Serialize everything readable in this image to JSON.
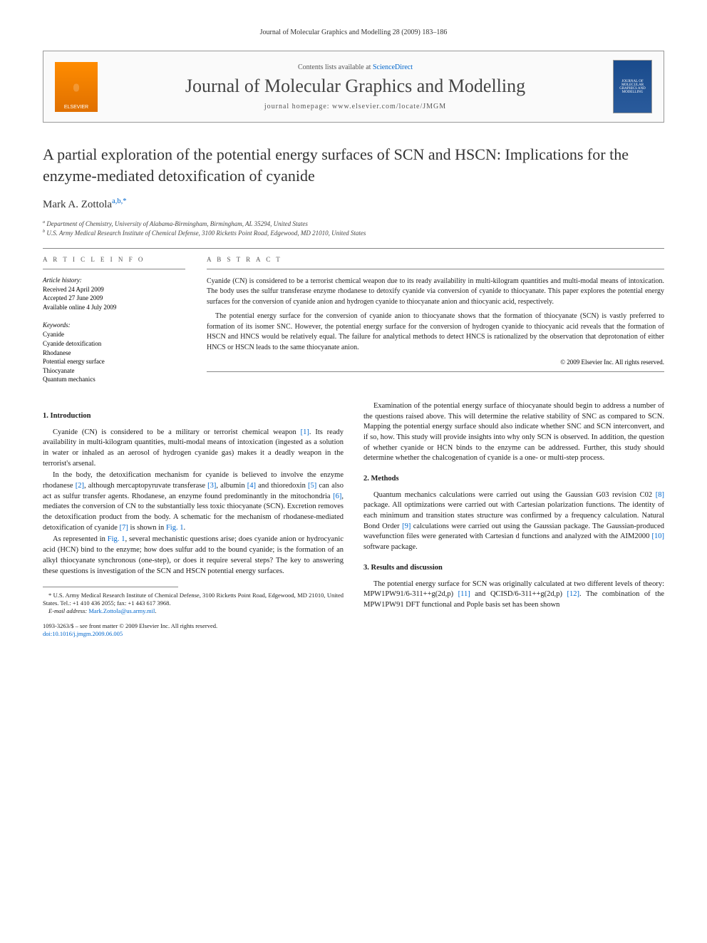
{
  "runningHead": "Journal of Molecular Graphics and Modelling 28 (2009) 183–186",
  "header": {
    "contentsPrefix": "Contents lists available at ",
    "contentsLink": "ScienceDirect",
    "journalName": "Journal of Molecular Graphics and Modelling",
    "homepagePrefix": "journal homepage: ",
    "homepage": "www.elsevier.com/locate/JMGM",
    "elsevierLabel": "ELSEVIER",
    "coverCaption": "JOURNAL OF MOLECULAR GRAPHICS AND MODELLING"
  },
  "title": "A partial exploration of the potential energy surfaces of SCN and HSCN: Implications for the enzyme-mediated detoxification of cyanide",
  "author": "Mark A. Zottola",
  "authorSup": "a,b,*",
  "affiliations": {
    "a": "Department of Chemistry, University of Alabama-Birmingham, Birmingham, AL 35294, United States",
    "b": "U.S. Army Medical Research Institute of Chemical Defense, 3100 Ricketts Point Road, Edgewood, MD 21010, United States"
  },
  "articleInfoLabel": "A R T I C L E   I N F O",
  "abstractLabel": "A B S T R A C T",
  "history": {
    "head": "Article history:",
    "received": "Received 24 April 2009",
    "accepted": "Accepted 27 June 2009",
    "online": "Available online 4 July 2009"
  },
  "keywords": {
    "head": "Keywords:",
    "items": [
      "Cyanide",
      "Cyanide detoxification",
      "Rhodanese",
      "Potential energy surface",
      "Thiocyanate",
      "Quantum mechanics"
    ]
  },
  "abstract": {
    "p1": "Cyanide (CN) is considered to be a terrorist chemical weapon due to its ready availability in multi-kilogram quantities and multi-modal means of intoxication. The body uses the sulfur transferase enzyme rhodanese to detoxify cyanide via conversion of cyanide to thiocyanate. This paper explores the potential energy surfaces for the conversion of cyanide anion and hydrogen cyanide to thiocyanate anion and thiocyanic acid, respectively.",
    "p2": "The potential energy surface for the conversion of cyanide anion to thiocyanate shows that the formation of thiocyanate (SCN) is vastly preferred to formation of its isomer SNC. However, the potential energy surface for the conversion of hydrogen cyanide to thiocyanic acid reveals that the formation of HSCN and HNCS would be relatively equal. The failure for analytical methods to detect HNCS is rationalized by the observation that deprotonation of either HNCS or HSCN leads to the same thiocyanate anion.",
    "copyright": "© 2009 Elsevier Inc. All rights reserved."
  },
  "sections": {
    "s1": {
      "head": "1. Introduction",
      "p1a": "Cyanide (CN) is considered to be a military or terrorist chemical weapon ",
      "p1b": ". Its ready availability in multi-kilogram quantities, multi-modal means of intoxication (ingested as a solution in water or inhaled as an aerosol of hydrogen cyanide gas) makes it a deadly weapon in the terrorist's arsenal.",
      "p2a": "In the body, the detoxification mechanism for cyanide is believed to involve the enzyme rhodanese ",
      "p2b": ", although mercaptopyruvate transferase ",
      "p2c": ", albumin ",
      "p2d": " and thioredoxin ",
      "p2e": " can also act as sulfur transfer agents. Rhodanese, an enzyme found predominantly in the mitochondria ",
      "p2f": ", mediates the conversion of CN to the substantially less toxic thiocyanate (SCN). Excretion removes the detoxification product from the body. A schematic for the mechanism of rhodanese-mediated detoxification of cyanide ",
      "p2g": " is shown in ",
      "p3a": "As represented in ",
      "p3b": ", several mechanistic questions arise; does cyanide anion or hydrocyanic acid (HCN) bind to the enzyme; how does sulfur add to the bound cyanide; is the formation of an alkyl thiocyanate synchronous (one-step), or does it require several steps? The key to answering these questions is investigation of the SCN and HSCN potential energy surfaces.",
      "p4": "Examination of the potential energy surface of thiocyanate should begin to address a number of the questions raised above. This will determine the relative stability of SNC as compared to SCN. Mapping the potential energy surface should also indicate whether SNC and SCN interconvert, and if so, how. This study will provide insights into why only SCN is observed. In addition, the question of whether cyanide or HCN binds to the enzyme can be addressed. Further, this study should determine whether the chalcogenation of cyanide is a one- or multi-step process."
    },
    "s2": {
      "head": "2. Methods",
      "p1a": "Quantum mechanics calculations were carried out using the Gaussian G03 revision C02 ",
      "p1b": " package. All optimizations were carried out with Cartesian polarization functions. The identity of each minimum and transition states structure was confirmed by a frequency calculation. Natural Bond Order ",
      "p1c": " calculations were carried out using the Gaussian package. The Gaussian-produced wavefunction files were generated with Cartesian d functions and analyzed with the AIM2000 ",
      "p1d": " software package."
    },
    "s3": {
      "head": "3. Results and discussion",
      "p1a": "The potential energy surface for SCN was originally calculated at two different levels of theory: MPW1PW91/6-311++g(2d,p) ",
      "p1b": " and QCISD/6-311++g(2d,p) ",
      "p1c": ". The combination of the MPW1PW91 DFT functional and Pople basis set has been shown"
    }
  },
  "refs": {
    "r1": "[1]",
    "r2": "[2]",
    "r3": "[3]",
    "r4": "[4]",
    "r5": "[5]",
    "r6": "[6]",
    "r7": "[7]",
    "r8": "[8]",
    "r9": "[9]",
    "r10": "[10]",
    "r11": "[11]",
    "r12": "[12]",
    "fig1": "Fig. 1"
  },
  "footnote": {
    "corr": "* U.S. Army Medical Research Institute of Chemical Defense, 3100 Ricketts Point Road, Edgewood, MD 21010, United States. Tel.: +1 410 436 2055; fax: +1 443 617 3968.",
    "emailLabel": "E-mail address: ",
    "email": "Mark.Zottola@us.army.mil",
    "period": "."
  },
  "footer": {
    "issn": "1093-3263/$ – see front matter © 2009 Elsevier Inc. All rights reserved.",
    "doi": "doi:10.1016/j.jmgm.2009.06.005"
  }
}
